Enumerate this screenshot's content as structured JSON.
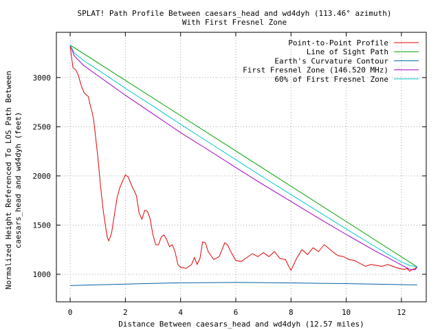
{
  "chart_data": {
    "type": "line",
    "title": "SPLAT! Path Profile Between caesars_head and wd4dyh (113.46° azimuth)",
    "subtitle": "With First Fresnel Zone",
    "xlabel": "Distance Between caesars_head and wd4dyh (12.57 miles)",
    "ylabel_line1": "Normalized Height Referenced To LOS Path Between",
    "ylabel_line2": "caesars_head and wd4dyh (feet)",
    "xlim": [
      -0.5,
      12.9
    ],
    "ylim": [
      720,
      3460
    ],
    "xticks": [
      0,
      2,
      4,
      6,
      8,
      10,
      12
    ],
    "yticks": [
      1000,
      1500,
      2000,
      2500,
      3000
    ],
    "grid": true,
    "legend_position": "top-right",
    "series": [
      {
        "name": "Point-to-Point Profile",
        "color": "#e00000",
        "points": [
          [
            0,
            3320
          ],
          [
            0.05,
            3210
          ],
          [
            0.1,
            3100
          ],
          [
            0.2,
            3080
          ],
          [
            0.3,
            3020
          ],
          [
            0.4,
            2920
          ],
          [
            0.5,
            2850
          ],
          [
            0.6,
            2820
          ],
          [
            0.65,
            2810
          ],
          [
            0.7,
            2750
          ],
          [
            0.8,
            2640
          ],
          [
            0.85,
            2570
          ],
          [
            0.9,
            2450
          ],
          [
            1.0,
            2200
          ],
          [
            1.1,
            1900
          ],
          [
            1.2,
            1640
          ],
          [
            1.3,
            1450
          ],
          [
            1.35,
            1370
          ],
          [
            1.4,
            1340
          ],
          [
            1.5,
            1420
          ],
          [
            1.6,
            1600
          ],
          [
            1.7,
            1780
          ],
          [
            1.8,
            1880
          ],
          [
            1.9,
            1950
          ],
          [
            2.0,
            2010
          ],
          [
            2.1,
            1990
          ],
          [
            2.2,
            1920
          ],
          [
            2.3,
            1860
          ],
          [
            2.4,
            1800
          ],
          [
            2.5,
            1620
          ],
          [
            2.6,
            1560
          ],
          [
            2.7,
            1650
          ],
          [
            2.8,
            1640
          ],
          [
            2.9,
            1560
          ],
          [
            3.0,
            1400
          ],
          [
            3.1,
            1300
          ],
          [
            3.2,
            1300
          ],
          [
            3.3,
            1380
          ],
          [
            3.4,
            1400
          ],
          [
            3.5,
            1350
          ],
          [
            3.6,
            1280
          ],
          [
            3.7,
            1300
          ],
          [
            3.8,
            1230
          ],
          [
            3.9,
            1100
          ],
          [
            4.0,
            1070
          ],
          [
            4.2,
            1060
          ],
          [
            4.4,
            1100
          ],
          [
            4.5,
            1170
          ],
          [
            4.6,
            1100
          ],
          [
            4.7,
            1160
          ],
          [
            4.8,
            1330
          ],
          [
            4.9,
            1320
          ],
          [
            5.0,
            1230
          ],
          [
            5.2,
            1150
          ],
          [
            5.4,
            1180
          ],
          [
            5.6,
            1320
          ],
          [
            5.7,
            1300
          ],
          [
            5.8,
            1240
          ],
          [
            6.0,
            1140
          ],
          [
            6.2,
            1130
          ],
          [
            6.4,
            1170
          ],
          [
            6.6,
            1210
          ],
          [
            6.8,
            1180
          ],
          [
            7.0,
            1220
          ],
          [
            7.2,
            1180
          ],
          [
            7.4,
            1230
          ],
          [
            7.6,
            1160
          ],
          [
            7.8,
            1150
          ],
          [
            7.9,
            1090
          ],
          [
            8.0,
            1040
          ],
          [
            8.1,
            1100
          ],
          [
            8.2,
            1160
          ],
          [
            8.4,
            1250
          ],
          [
            8.6,
            1200
          ],
          [
            8.8,
            1270
          ],
          [
            9.0,
            1230
          ],
          [
            9.2,
            1300
          ],
          [
            9.3,
            1280
          ],
          [
            9.5,
            1230
          ],
          [
            9.7,
            1190
          ],
          [
            9.9,
            1180
          ],
          [
            10.1,
            1150
          ],
          [
            10.3,
            1140
          ],
          [
            10.5,
            1110
          ],
          [
            10.7,
            1080
          ],
          [
            10.9,
            1100
          ],
          [
            11.1,
            1090
          ],
          [
            11.3,
            1080
          ],
          [
            11.5,
            1100
          ],
          [
            11.7,
            1080
          ],
          [
            11.9,
            1060
          ],
          [
            12.1,
            1050
          ],
          [
            12.2,
            1060
          ],
          [
            12.3,
            1030
          ],
          [
            12.4,
            1050
          ],
          [
            12.5,
            1060
          ],
          [
            12.57,
            1075
          ]
        ]
      },
      {
        "name": "Line of Sight Path",
        "color": "#00a000",
        "points": [
          [
            0,
            3330
          ],
          [
            12.57,
            1075
          ]
        ]
      },
      {
        "name": "Earth's Curvature Contour",
        "color": "#0060a0",
        "points": [
          [
            0,
            885
          ],
          [
            1,
            893
          ],
          [
            2,
            900
          ],
          [
            3,
            907
          ],
          [
            4,
            913
          ],
          [
            5,
            915
          ],
          [
            6,
            917
          ],
          [
            7,
            915
          ],
          [
            8,
            912
          ],
          [
            9,
            908
          ],
          [
            10,
            905
          ],
          [
            11,
            900
          ],
          [
            12,
            895
          ],
          [
            12.57,
            892
          ]
        ]
      },
      {
        "name": "First Fresnel Zone (146.520 MHz)",
        "color": "#a000c0",
        "points": [
          [
            0,
            3330
          ],
          [
            0.15,
            3220
          ],
          [
            0.5,
            3120
          ],
          [
            1,
            3020
          ],
          [
            2,
            2820
          ],
          [
            3,
            2630
          ],
          [
            4,
            2440
          ],
          [
            5,
            2265
          ],
          [
            6,
            2085
          ],
          [
            7,
            1910
          ],
          [
            8,
            1740
          ],
          [
            9,
            1570
          ],
          [
            10,
            1405
          ],
          [
            11,
            1245
          ],
          [
            11.5,
            1170
          ],
          [
            12,
            1095
          ],
          [
            12.3,
            1050
          ],
          [
            12.5,
            1045
          ],
          [
            12.57,
            1075
          ]
        ]
      },
      {
        "name": "60% of First Fresnel Zone",
        "color": "#00c8c8",
        "points": [
          [
            0,
            3330
          ],
          [
            0.15,
            3250
          ],
          [
            0.5,
            3170
          ],
          [
            1,
            3080
          ],
          [
            2,
            2890
          ],
          [
            3,
            2710
          ],
          [
            4,
            2525
          ],
          [
            5,
            2345
          ],
          [
            6,
            2165
          ],
          [
            7,
            1985
          ],
          [
            8,
            1810
          ],
          [
            9,
            1635
          ],
          [
            10,
            1460
          ],
          [
            11,
            1290
          ],
          [
            11.5,
            1205
          ],
          [
            12,
            1125
          ],
          [
            12.3,
            1090
          ],
          [
            12.57,
            1075
          ]
        ]
      }
    ]
  }
}
